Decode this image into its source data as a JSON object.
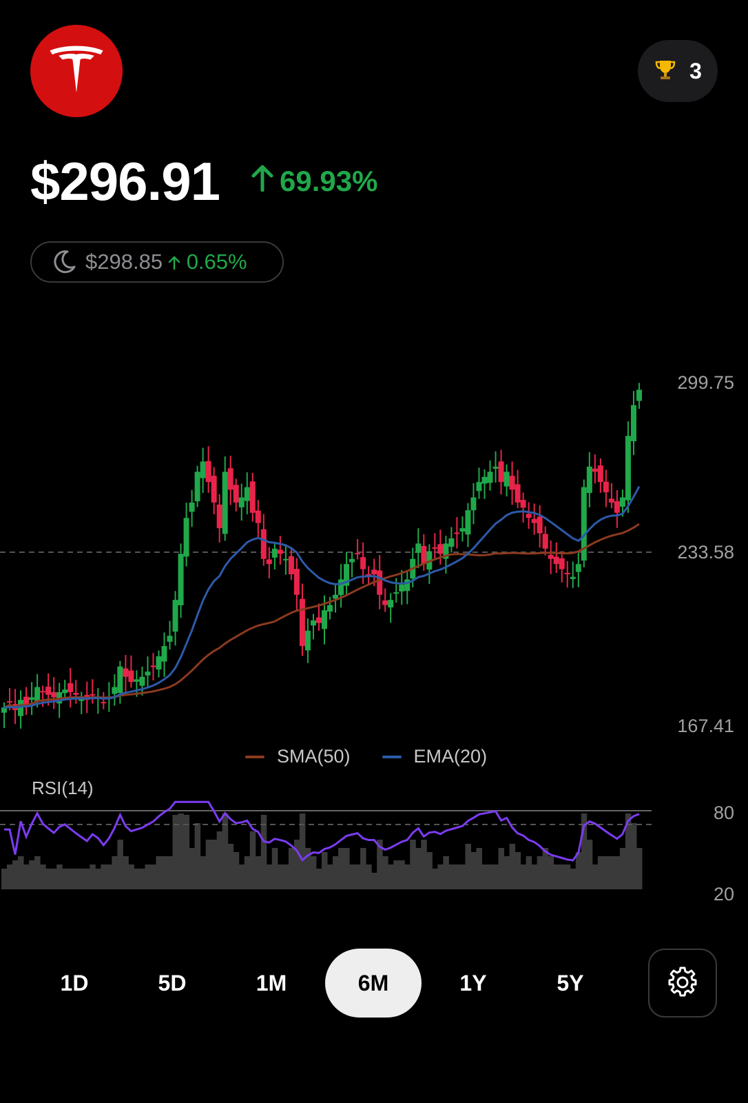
{
  "header": {
    "logo_icon": "tesla-logo",
    "trophy_icon": "trophy-icon",
    "trophy_count": "3"
  },
  "quote": {
    "price": "$296.91",
    "change": "69.93%",
    "change_direction": "up",
    "after_hours": {
      "icon": "moon-icon",
      "price": "$298.85",
      "change": "0.65%",
      "change_direction": "up"
    }
  },
  "colors": {
    "up": "#20a84a",
    "down": "#e8244b",
    "sma": "#8b3a1e",
    "ema": "#2c5aa8",
    "rsi": "#7b3cf0",
    "active_range_bg": "#eeeeee"
  },
  "chart_data": [
    {
      "type": "candlestick",
      "y_axis_labels": [
        "299.75",
        "233.58",
        "167.41"
      ],
      "ylim": [
        167.41,
        299.75
      ],
      "reference_line": 233.58,
      "legend": [
        {
          "name": "SMA(50)",
          "color": "#8b3a1e"
        },
        {
          "name": "EMA(20)",
          "color": "#2c5aa8"
        }
      ],
      "legend_position": "bottom-center",
      "close": [
        170,
        172,
        169,
        173,
        171,
        174,
        178,
        176,
        175,
        174,
        176,
        177,
        176,
        175,
        174,
        173,
        175,
        174,
        172,
        174,
        178,
        186,
        182,
        180,
        181,
        182,
        184,
        186,
        190,
        194,
        198,
        212,
        230,
        244,
        250,
        262,
        266,
        258,
        250,
        240,
        262,
        255,
        250,
        252,
        256,
        246,
        242,
        228,
        226,
        232,
        230,
        228,
        222,
        214,
        194,
        200,
        204,
        203,
        208,
        210,
        214,
        220,
        226,
        228,
        230,
        224,
        222,
        222,
        214,
        210,
        212,
        215,
        218,
        220,
        228,
        234,
        226,
        231,
        232,
        230,
        234,
        236,
        238,
        240,
        247,
        252,
        258,
        260,
        262,
        264,
        258,
        262,
        255,
        250,
        248,
        244,
        242,
        238,
        232,
        228,
        226,
        224,
        222,
        221,
        226,
        256,
        264,
        262,
        258,
        254,
        250,
        246,
        252,
        276,
        288,
        294
      ],
      "rsi_range": [
        20,
        80
      ]
    },
    {
      "type": "line",
      "title": "RSI(14)",
      "y_axis_labels": [
        "80",
        "20"
      ],
      "ylim": [
        20,
        80
      ]
    }
  ],
  "range_selector": {
    "options": [
      "1D",
      "5D",
      "1M",
      "6M",
      "1Y",
      "5Y"
    ],
    "active": "6M",
    "settings_icon": "gear-icon"
  }
}
